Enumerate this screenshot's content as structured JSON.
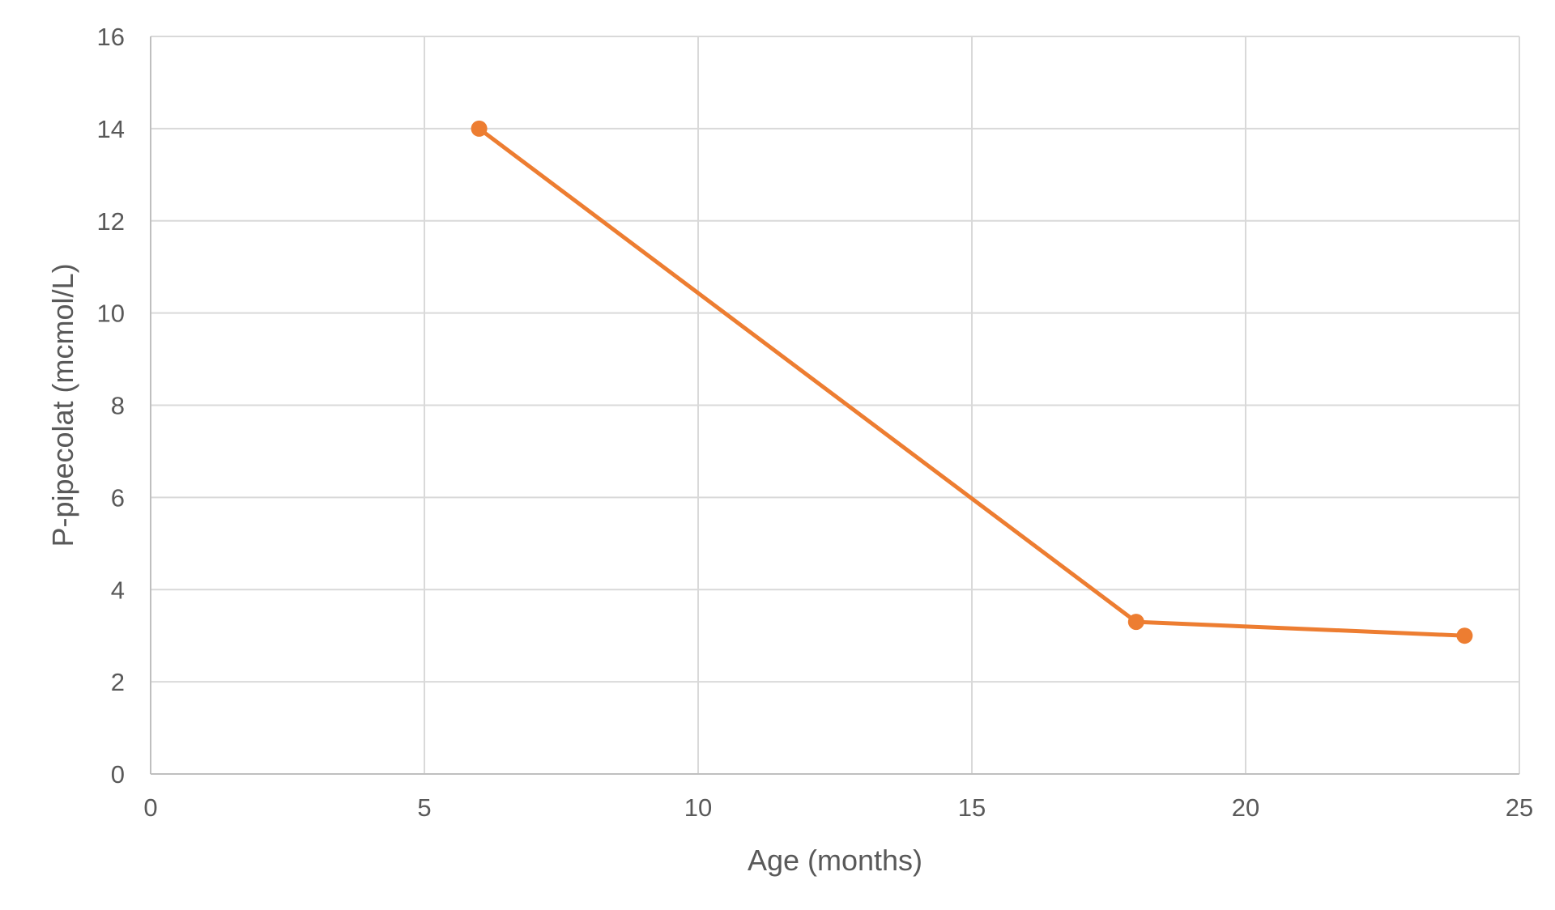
{
  "chart_data": {
    "type": "scatter",
    "title": "",
    "xlabel": "Age (months)",
    "ylabel": "P-pipecolat (mcmol/L)",
    "xlim": [
      0,
      25
    ],
    "ylim": [
      0,
      16
    ],
    "x_ticks": [
      0,
      5,
      10,
      15,
      20,
      25
    ],
    "y_ticks": [
      0,
      2,
      4,
      6,
      8,
      10,
      12,
      14,
      16
    ],
    "grid": true,
    "legend": "none",
    "series": [
      {
        "x": [
          6,
          18,
          24
        ],
        "y": [
          14,
          3.3,
          3.0
        ],
        "color": "#ed7d31",
        "line": true,
        "markers": true
      }
    ]
  }
}
